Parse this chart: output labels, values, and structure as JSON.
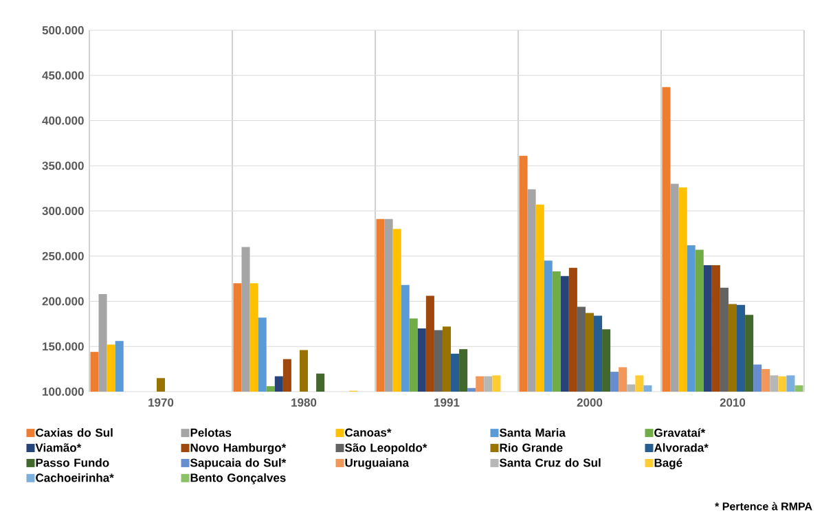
{
  "chart_data": {
    "type": "bar",
    "categories": [
      "1970",
      "1980",
      "1991",
      "2000",
      "2010"
    ],
    "ylim": [
      100000,
      500000
    ],
    "yticks": [
      {
        "value": 100000,
        "label": "100.000"
      },
      {
        "value": 150000,
        "label": "150.000"
      },
      {
        "value": 200000,
        "label": "200.000"
      },
      {
        "value": 250000,
        "label": "250.000"
      },
      {
        "value": 300000,
        "label": "300.000"
      },
      {
        "value": 350000,
        "label": "350.000"
      },
      {
        "value": 400000,
        "label": "400.000"
      },
      {
        "value": 450000,
        "label": "450.000"
      },
      {
        "value": 500000,
        "label": "500.000"
      }
    ],
    "grid": true,
    "legend": "bottom",
    "annotations": [
      "* Pertence à RMPA"
    ],
    "series": [
      {
        "name": "Caxias do Sul",
        "color": "#ed7d31",
        "values": [
          144000,
          220000,
          291000,
          361000,
          437000
        ]
      },
      {
        "name": "Pelotas",
        "color": "#a5a5a5",
        "values": [
          208000,
          260000,
          291000,
          324000,
          330000
        ]
      },
      {
        "name": "Canoas*",
        "color": "#ffc000",
        "values": [
          152000,
          220000,
          280000,
          307000,
          326000
        ]
      },
      {
        "name": "Santa Maria",
        "color": "#5b9bd5",
        "values": [
          156000,
          182000,
          218000,
          245000,
          262000
        ]
      },
      {
        "name": "Gravataí*",
        "color": "#70ad47",
        "values": [
          null,
          106000,
          181000,
          233000,
          257000
        ]
      },
      {
        "name": "Viamão*",
        "color": "#264478",
        "values": [
          null,
          117000,
          170000,
          228000,
          240000
        ]
      },
      {
        "name": "Novo Hamburgo*",
        "color": "#9e480e",
        "values": [
          null,
          136000,
          206000,
          237000,
          240000
        ]
      },
      {
        "name": "São Leopoldo*",
        "color": "#636363",
        "values": [
          null,
          null,
          168000,
          194000,
          215000
        ]
      },
      {
        "name": "Rio Grande",
        "color": "#997300",
        "values": [
          115000,
          146000,
          172000,
          187000,
          197000
        ]
      },
      {
        "name": "Alvorada*",
        "color": "#255e91",
        "values": [
          null,
          null,
          142000,
          184000,
          196000
        ]
      },
      {
        "name": "Passo Fundo",
        "color": "#43682b",
        "values": [
          null,
          120000,
          147000,
          169000,
          185000
        ]
      },
      {
        "name": "Sapucaia do Sul*",
        "color": "#698ed0",
        "values": [
          null,
          null,
          104000,
          122000,
          130000
        ]
      },
      {
        "name": "Uruguaiana",
        "color": "#f1975a",
        "values": [
          null,
          null,
          117000,
          127000,
          125000
        ]
      },
      {
        "name": "Santa Cruz do Sul",
        "color": "#b7b7b7",
        "values": [
          null,
          null,
          117000,
          108000,
          118000
        ]
      },
      {
        "name": "Bagé",
        "color": "#ffcd33",
        "values": [
          null,
          101000,
          118000,
          118000,
          117000
        ]
      },
      {
        "name": "Cachoeirinha*",
        "color": "#7cafdd",
        "values": [
          null,
          null,
          null,
          107000,
          118000
        ]
      },
      {
        "name": "Bento Gonçalves",
        "color": "#8cc168",
        "values": [
          null,
          null,
          null,
          null,
          107000
        ]
      }
    ]
  }
}
